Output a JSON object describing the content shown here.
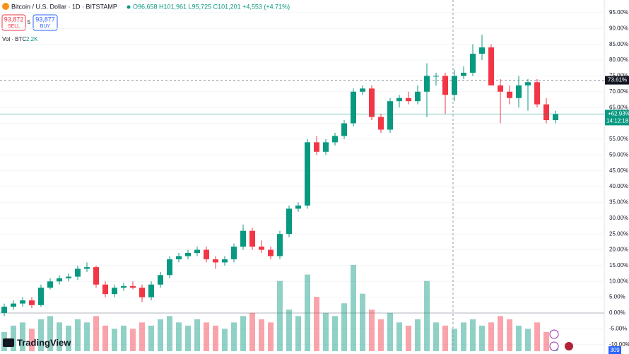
{
  "chart_data": {
    "type": "candlestick",
    "title": "Bitcoin / U.S. Dollar · 1D · BITSTAMP",
    "ohlc_text": "O96,658 H101,961 L95,725 C101,201 +4,553 (+4.71%)",
    "sell_price": "93,872",
    "sell_label": "SELL",
    "spread": "5",
    "buy_price": "93,877",
    "buy_label": "BUY",
    "volume_label": "Vol · BTC",
    "volume_value": "2.2K",
    "logo": "TradingView",
    "corner_badge": "309",
    "up_color": "#089981",
    "down_color": "#f23645",
    "ylim": [
      -10.5,
      99
    ],
    "yticks": [
      {
        "value": 95,
        "label": "95.00%"
      },
      {
        "value": 90,
        "label": "90.00%"
      },
      {
        "value": 85,
        "label": "85.00%"
      },
      {
        "value": 80,
        "label": "80.00%"
      },
      {
        "value": 75,
        "label": "75.00%"
      },
      {
        "value": 70,
        "label": "70.00%"
      },
      {
        "value": 65,
        "label": "65.00%"
      },
      {
        "value": 60,
        "label": "60.00%"
      },
      {
        "value": 55,
        "label": "55.00%"
      },
      {
        "value": 50,
        "label": "50.00%"
      },
      {
        "value": 45,
        "label": "45.00%"
      },
      {
        "value": 40,
        "label": "40.00%"
      },
      {
        "value": 35,
        "label": "35.00%"
      },
      {
        "value": 30,
        "label": "30.00%"
      },
      {
        "value": 25,
        "label": "25.00%"
      },
      {
        "value": 20,
        "label": "20.00%"
      },
      {
        "value": 15,
        "label": "15.00%"
      },
      {
        "value": 10,
        "label": "10.00%"
      },
      {
        "value": 5,
        "label": "5.00%"
      },
      {
        "value": 0,
        "label": "0.00%"
      },
      {
        "value": -5,
        "label": "-5.00%"
      },
      {
        "value": -10,
        "label": "-10.00%"
      }
    ],
    "crosshair": {
      "value": 73.61,
      "label": "73.61%"
    },
    "last": {
      "value": 62.93,
      "label": "+62.93%",
      "countdown": "14:12:18"
    },
    "open": [
      0,
      2,
      3,
      4,
      2.5,
      8,
      10,
      11,
      11.5,
      14,
      14.5,
      9,
      6,
      8,
      8.5,
      8,
      5,
      9,
      12,
      17,
      18,
      19,
      20,
      17,
      16,
      17,
      21,
      26,
      21,
      20,
      18,
      25,
      33,
      34,
      54,
      51,
      54,
      56,
      60,
      70,
      71,
      62,
      58,
      67,
      68,
      67,
      70,
      75,
      75,
      69,
      75,
      76,
      82,
      84,
      72,
      70,
      68,
      72,
      73,
      66,
      61
    ],
    "high": [
      3,
      4,
      5,
      5,
      9,
      11,
      12,
      12.5,
      15,
      16,
      15,
      10,
      9,
      9.5,
      10,
      9,
      10,
      13,
      18,
      19,
      20,
      21,
      21,
      18,
      18,
      22,
      28,
      27,
      23,
      21,
      26,
      34,
      35,
      55,
      56,
      55,
      57,
      61,
      71,
      72,
      72,
      63,
      68,
      69,
      70,
      72,
      79,
      76,
      76,
      77,
      78,
      85,
      88,
      85,
      74,
      72,
      75,
      74,
      74,
      68,
      64
    ],
    "low": [
      -1,
      1,
      2,
      1.5,
      2,
      7.5,
      9,
      10,
      10.5,
      13,
      8,
      5,
      5,
      7,
      7.5,
      3.5,
      4,
      8,
      11,
      16,
      17,
      18,
      16,
      14,
      15,
      16,
      20,
      20,
      19,
      17,
      17,
      24,
      32,
      33,
      50,
      50,
      53,
      55,
      59,
      69,
      61,
      57,
      57,
      65,
      66,
      66,
      62,
      72,
      63,
      67,
      74,
      75,
      80,
      72,
      60,
      66,
      65,
      64,
      65,
      60,
      60
    ],
    "close": [
      2,
      3,
      4,
      2.5,
      8,
      10,
      11,
      11.5,
      14,
      14.5,
      9,
      6,
      8,
      8.5,
      8,
      5,
      9,
      12,
      17,
      18,
      19,
      20,
      17,
      16,
      17,
      21,
      26,
      21,
      20,
      18,
      25,
      33,
      34,
      54,
      51,
      54,
      56,
      60,
      70,
      71,
      62,
      58,
      67,
      68,
      67,
      70,
      75,
      75,
      69,
      75,
      76,
      82,
      84,
      72,
      70,
      68,
      72,
      73,
      66,
      61,
      62.93
    ],
    "volume": [
      6,
      8,
      9,
      7,
      10,
      11,
      9,
      8,
      10,
      9,
      11,
      8,
      7,
      8,
      7,
      9,
      8,
      10,
      11,
      9,
      8,
      10,
      9,
      8,
      7,
      9,
      11,
      12,
      10,
      9,
      22,
      13,
      11,
      24,
      17,
      12,
      11,
      15,
      27,
      18,
      13,
      10,
      12,
      9,
      8,
      10,
      22,
      9,
      8,
      7,
      9,
      10,
      8,
      9,
      11,
      10,
      8,
      7,
      9,
      6,
      2.2
    ]
  }
}
